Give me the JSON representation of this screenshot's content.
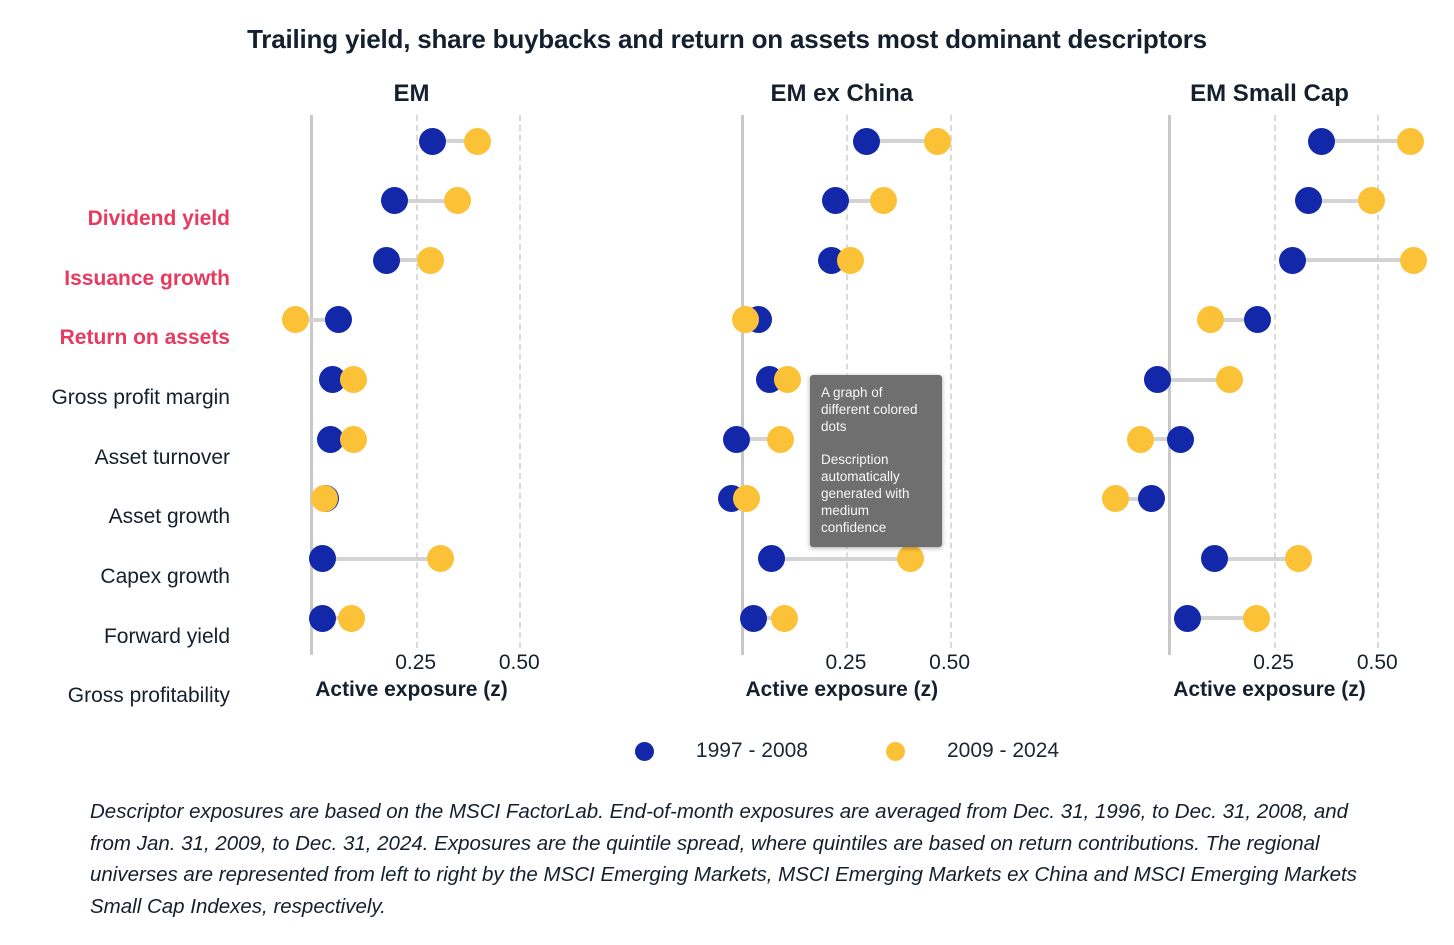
{
  "title": "Trailing yield, share buybacks and return on assets most dominant descriptors",
  "chart_data": {
    "type": "scatter",
    "subtype": "dumbbell-dot-plot",
    "categories": [
      "Dividend yield",
      "Issuance growth",
      "Return on assets",
      "Gross profit margin",
      "Asset turnover",
      "Asset growth",
      "Capex growth",
      "Forward yield",
      "Gross profitability"
    ],
    "highlighted": [
      true,
      true,
      true,
      false,
      false,
      false,
      false,
      false,
      false
    ],
    "highlight_color": "#e83a5f",
    "panels": [
      {
        "title": "EM",
        "series": [
          {
            "name": "1997 - 2008",
            "values": [
              0.29,
              0.2,
              0.18,
              0.065,
              0.05,
              0.045,
              0.032,
              0.025,
              0.025
            ]
          },
          {
            "name": "2009 - 2024",
            "values": [
              0.4,
              0.35,
              0.285,
              -0.04,
              0.1,
              0.1,
              0.03,
              0.31,
              0.095
            ]
          }
        ]
      },
      {
        "title": "EM ex China",
        "series": [
          {
            "name": "1997 - 2008",
            "values": [
              0.3,
              0.225,
              0.215,
              0.04,
              0.065,
              -0.013,
              -0.025,
              0.07,
              0.028
            ]
          },
          {
            "name": "2009 - 2024",
            "values": [
              0.47,
              0.34,
              0.26,
              0.007,
              0.11,
              0.092,
              0.009,
              0.405,
              0.103
            ]
          }
        ]
      },
      {
        "title": "EM Small Cap",
        "series": [
          {
            "name": "1997 - 2008",
            "values": [
              0.365,
              0.335,
              0.295,
              0.21,
              -0.03,
              0.026,
              -0.045,
              0.107,
              0.042
            ]
          },
          {
            "name": "2009 - 2024",
            "values": [
              0.58,
              0.487,
              0.587,
              0.098,
              0.144,
              -0.071,
              -0.132,
              0.31,
              0.209
            ]
          }
        ]
      }
    ],
    "xlabel": "Active exposure (z)",
    "xticks": [
      0.25,
      0.5
    ],
    "xtick_labels": [
      "0.25",
      "0.50"
    ],
    "xlim": [
      -0.17,
      0.65
    ],
    "grid": "vertical-dashed",
    "legend_position": "bottom",
    "colors": {
      "series1": "#1228a8",
      "series2": "#fbc237",
      "connector": "#d3d3d3",
      "axis": "#c8c8c8"
    }
  },
  "legend": {
    "items": [
      {
        "label": "1997 - 2008",
        "color": "#1228a8"
      },
      {
        "label": "2009 - 2024",
        "color": "#fbc237"
      }
    ]
  },
  "tooltip": {
    "paragraphs": [
      "A graph of different colored dots",
      "Description automatically generated with medium confidence"
    ]
  },
  "footnote": {
    "text": "Descriptor exposures are based on the MSCI FactorLab. End-of-month exposures are averaged from Dec. 31, 1996, to Dec. 31, 2008, and from Jan. 31, 2009, to Dec. 31, 2024. Exposures are the quintile spread, where quintiles are based on return contributions. The regional universes are represented from left to right by the MSCI Emerging Markets, MSCI Emerging Markets ex China and MSCI Emerging Markets Small Cap Indexes, respectively."
  }
}
